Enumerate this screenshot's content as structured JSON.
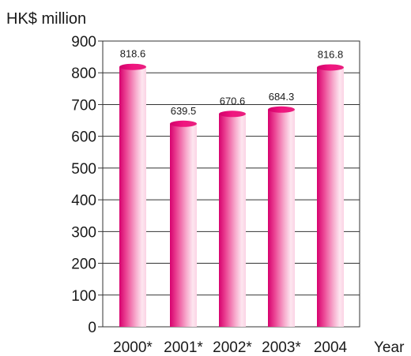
{
  "chart_data": {
    "type": "bar",
    "unit_label": "HK$ million",
    "xlabel": "Year",
    "ylabel": "",
    "categories": [
      "2000*",
      "2001*",
      "2002*",
      "2003*",
      "2004"
    ],
    "values": [
      818.6,
      639.5,
      670.6,
      684.3,
      816.8
    ],
    "value_labels": [
      "818.6",
      "639.5",
      "670.6",
      "684.3",
      "816.8"
    ],
    "y_ticks": [
      0,
      100,
      200,
      300,
      400,
      500,
      600,
      700,
      800,
      900
    ],
    "y_tick_labels": [
      "0",
      "100",
      "200",
      "300",
      "400",
      "500",
      "600",
      "700",
      "800",
      "900"
    ],
    "ylim": [
      0,
      900
    ],
    "grid": true,
    "legend": "none",
    "colors": {
      "bar_dark": "#e2007a",
      "bar_mid": "#f06fa8",
      "bar_light": "#fde4ee",
      "top": "#e8006f"
    }
  }
}
